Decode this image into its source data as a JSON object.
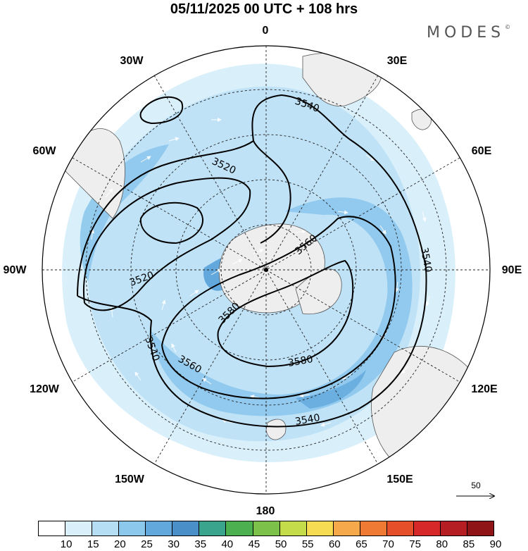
{
  "title": "05/11/2025  00 UTC  + 108 hrs",
  "brand": "MODES",
  "brand_mark": "©",
  "longitude_labels": {
    "lon_0": "0",
    "lon_30e": "30E",
    "lon_60e": "60E",
    "lon_90e": "90E",
    "lon_120e": "120E",
    "lon_150e": "150E",
    "lon_180": "180",
    "lon_150w": "150W",
    "lon_120w": "120W",
    "lon_90w": "90W",
    "lon_60w": "60W",
    "lon_30w": "30W"
  },
  "contours": {
    "c3540_top": "3540",
    "c3520_top": "3520",
    "c3520_left": "3520",
    "c3560_center": "3560",
    "c3540_right": "3540",
    "c3580_center": "3580",
    "c3540_left": "3540",
    "c3560_lower": "3560",
    "c3580_lower": "3580",
    "c3540_bottom": "3540"
  },
  "reference_vector": {
    "value": "50"
  },
  "colorbar": {
    "labels": [
      "10",
      "15",
      "20",
      "25",
      "30",
      "35",
      "40",
      "45",
      "50",
      "55",
      "60",
      "65",
      "70",
      "75",
      "80",
      "85",
      "90"
    ],
    "colors": [
      "#ffffff",
      "#d9f0fb",
      "#b5def5",
      "#8cc8ec",
      "#62a8dc",
      "#4a8fc8",
      "#3aa58c",
      "#4caf50",
      "#7cc24a",
      "#c5dc4a",
      "#f5dc52",
      "#f5a94a",
      "#ef7a33",
      "#e5502b",
      "#d62828",
      "#b51f24",
      "#8f1417"
    ]
  }
}
